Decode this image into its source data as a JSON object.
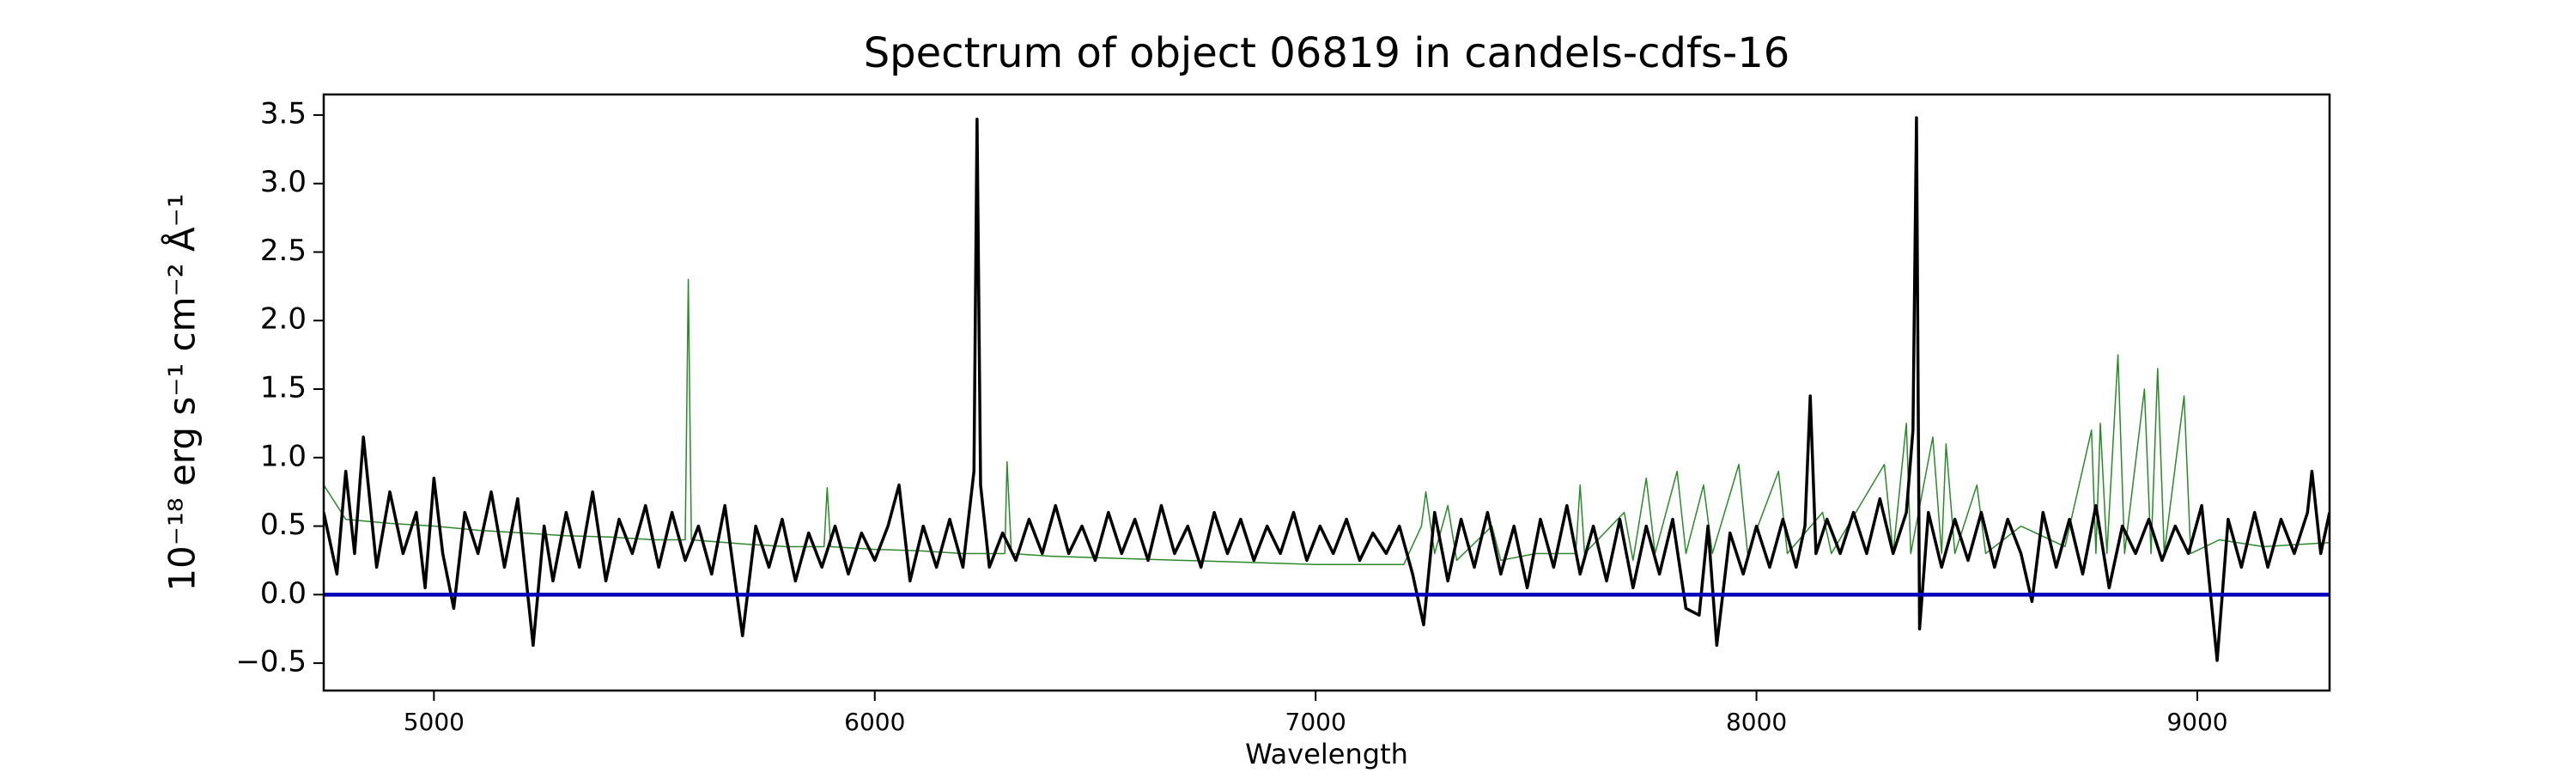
{
  "chart_data": {
    "type": "line",
    "title": "Spectrum of object 06819 in candels-cdfs-16",
    "xlabel": "Wavelength",
    "ylabel": "10⁻¹⁸ erg s⁻¹ cm⁻² Å⁻¹",
    "xlim": [
      4750,
      9300
    ],
    "ylim": [
      -0.7,
      3.65
    ],
    "xticks": [
      5000,
      6000,
      7000,
      8000,
      9000
    ],
    "yticks": [
      {
        "value": -0.5,
        "label": "−0.5"
      },
      {
        "value": 0,
        "label": "0.0"
      },
      {
        "value": 0.5,
        "label": "0.5"
      },
      {
        "value": 1,
        "label": "1.0"
      },
      {
        "value": 1.5,
        "label": "1.5"
      },
      {
        "value": 2,
        "label": "2.0"
      },
      {
        "value": 2.5,
        "label": "2.5"
      },
      {
        "value": 3,
        "label": "3.0"
      },
      {
        "value": 3.5,
        "label": "3.5"
      }
    ],
    "series": [
      {
        "color": "#2a8a2a",
        "linewidth": 1.5,
        "x": [
          4750,
          4800,
          4900,
          5000,
          5100,
          5200,
          5300,
          5400,
          5500,
          5570,
          5577,
          5584,
          5700,
          5800,
          5885,
          5892,
          5900,
          6000,
          6100,
          6200,
          6295,
          6300,
          6310,
          6400,
          6500,
          6600,
          6700,
          6800,
          6900,
          7000,
          7100,
          7200,
          7240,
          7250,
          7270,
          7300,
          7320,
          7400,
          7420,
          7500,
          7590,
          7600,
          7610,
          7700,
          7720,
          7750,
          7770,
          7820,
          7840,
          7880,
          7900,
          7960,
          7980,
          8050,
          8070,
          8150,
          8170,
          8290,
          8310,
          8340,
          8350,
          8400,
          8420,
          8430,
          8450,
          8500,
          8520,
          8600,
          8700,
          8760,
          8770,
          8780,
          8795,
          8820,
          8835,
          8880,
          8895,
          8910,
          8925,
          8970,
          8985,
          9050,
          9150,
          9300
        ],
        "values": [
          0.8,
          0.55,
          0.52,
          0.5,
          0.47,
          0.45,
          0.43,
          0.42,
          0.4,
          0.4,
          2.3,
          0.4,
          0.37,
          0.35,
          0.35,
          0.78,
          0.35,
          0.33,
          0.32,
          0.3,
          0.3,
          0.97,
          0.3,
          0.28,
          0.27,
          0.26,
          0.25,
          0.24,
          0.23,
          0.22,
          0.22,
          0.22,
          0.5,
          0.75,
          0.3,
          0.65,
          0.25,
          0.5,
          0.25,
          0.3,
          0.3,
          0.8,
          0.3,
          0.6,
          0.25,
          0.85,
          0.3,
          0.9,
          0.3,
          0.8,
          0.3,
          0.95,
          0.3,
          0.9,
          0.3,
          0.6,
          0.3,
          0.95,
          0.3,
          1.25,
          0.3,
          1.15,
          0.3,
          1.1,
          0.3,
          0.8,
          0.3,
          0.5,
          0.35,
          1.2,
          0.3,
          1.25,
          0.3,
          1.75,
          0.3,
          1.5,
          0.3,
          1.65,
          0.3,
          1.45,
          0.3,
          0.4,
          0.35,
          0.38
        ]
      },
      {
        "color": "#000000",
        "linewidth": 3.5,
        "x": [
          4750,
          4780,
          4800,
          4820,
          4840,
          4870,
          4900,
          4930,
          4960,
          4980,
          5000,
          5020,
          5045,
          5070,
          5100,
          5130,
          5160,
          5190,
          5225,
          5250,
          5270,
          5300,
          5330,
          5360,
          5390,
          5420,
          5450,
          5480,
          5510,
          5540,
          5570,
          5600,
          5630,
          5660,
          5700,
          5730,
          5760,
          5790,
          5820,
          5850,
          5880,
          5910,
          5940,
          5970,
          6000,
          6030,
          6055,
          6080,
          6110,
          6140,
          6170,
          6200,
          6225,
          6232,
          6240,
          6260,
          6290,
          6320,
          6350,
          6380,
          6410,
          6440,
          6470,
          6500,
          6530,
          6560,
          6590,
          6620,
          6650,
          6680,
          6710,
          6740,
          6770,
          6800,
          6830,
          6860,
          6890,
          6920,
          6950,
          6980,
          7010,
          7040,
          7070,
          7100,
          7130,
          7160,
          7190,
          7220,
          7245,
          7270,
          7300,
          7330,
          7360,
          7390,
          7420,
          7450,
          7480,
          7510,
          7540,
          7570,
          7600,
          7630,
          7660,
          7690,
          7720,
          7750,
          7780,
          7810,
          7840,
          7870,
          7890,
          7910,
          7940,
          7970,
          8000,
          8030,
          8060,
          8090,
          8110,
          8122,
          8135,
          8160,
          8190,
          8220,
          8250,
          8280,
          8310,
          8340,
          8355,
          8363,
          8370,
          8390,
          8420,
          8450,
          8480,
          8510,
          8540,
          8570,
          8600,
          8625,
          8650,
          8680,
          8710,
          8740,
          8770,
          8800,
          8830,
          8860,
          8890,
          8920,
          8950,
          8980,
          9010,
          9045,
          9070,
          9100,
          9130,
          9160,
          9190,
          9220,
          9250,
          9260,
          9280,
          9300
        ],
        "values": [
          0.6,
          0.15,
          0.9,
          0.3,
          1.15,
          0.2,
          0.75,
          0.3,
          0.6,
          0.05,
          0.85,
          0.3,
          -0.1,
          0.6,
          0.3,
          0.75,
          0.2,
          0.7,
          -0.37,
          0.5,
          0.1,
          0.6,
          0.2,
          0.75,
          0.1,
          0.55,
          0.3,
          0.65,
          0.2,
          0.6,
          0.25,
          0.5,
          0.15,
          0.65,
          -0.3,
          0.5,
          0.2,
          0.55,
          0.1,
          0.45,
          0.2,
          0.5,
          0.15,
          0.45,
          0.25,
          0.5,
          0.8,
          0.1,
          0.5,
          0.2,
          0.55,
          0.2,
          0.9,
          3.47,
          0.8,
          0.2,
          0.45,
          0.25,
          0.55,
          0.3,
          0.65,
          0.3,
          0.5,
          0.25,
          0.6,
          0.3,
          0.55,
          0.25,
          0.65,
          0.3,
          0.5,
          0.2,
          0.6,
          0.3,
          0.55,
          0.25,
          0.5,
          0.3,
          0.6,
          0.25,
          0.5,
          0.3,
          0.55,
          0.25,
          0.45,
          0.3,
          0.5,
          0.15,
          -0.22,
          0.6,
          0.1,
          0.55,
          0.2,
          0.6,
          0.15,
          0.5,
          0.05,
          0.55,
          0.2,
          0.65,
          0.15,
          0.5,
          0.1,
          0.55,
          0.05,
          0.5,
          0.15,
          0.55,
          -0.1,
          -0.15,
          0.5,
          -0.37,
          0.45,
          0.15,
          0.5,
          0.2,
          0.55,
          0.2,
          0.5,
          1.45,
          0.3,
          0.55,
          0.3,
          0.6,
          0.3,
          0.7,
          0.3,
          0.6,
          1.2,
          3.48,
          -0.25,
          0.6,
          0.2,
          0.55,
          0.25,
          0.6,
          0.2,
          0.55,
          0.3,
          -0.05,
          0.6,
          0.2,
          0.55,
          0.15,
          0.65,
          0.05,
          0.5,
          0.3,
          0.55,
          0.25,
          0.5,
          0.3,
          0.65,
          -0.48,
          0.55,
          0.2,
          0.6,
          0.2,
          0.55,
          0.3,
          0.6,
          0.9,
          0.3,
          0.6
        ]
      },
      {
        "color": "#0000bb",
        "linewidth": 4.5,
        "x": [
          4750,
          9300
        ],
        "values": [
          0,
          0
        ]
      }
    ]
  }
}
